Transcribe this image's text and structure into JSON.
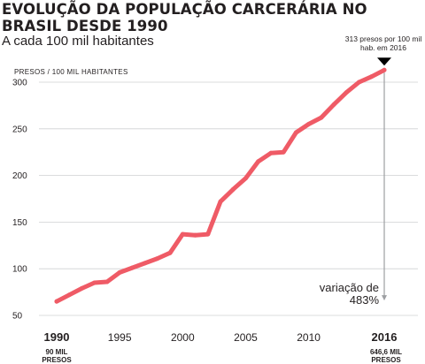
{
  "chart_data": {
    "type": "line",
    "title": "EVOLUÇÃO DA POPULAÇÃO CARCERÁRIA NO BRASIL DESDE 1990",
    "subtitle": "A cada 100 mil habitantes",
    "ylabel": "PRESOS / 100 MIL HABITANTES",
    "xlabel": "",
    "ylim": [
      50,
      315
    ],
    "xlim": [
      1990,
      2016
    ],
    "y_ticks": [
      50,
      100,
      150,
      200,
      250,
      300
    ],
    "x_ticks": [
      1990,
      1995,
      2000,
      2005,
      2010,
      2016
    ],
    "grid": true,
    "color": "#ef5b66",
    "x": [
      1990,
      1991,
      1992,
      1993,
      1994,
      1995,
      1996,
      1997,
      1998,
      1999,
      2000,
      2001,
      2002,
      2003,
      2004,
      2005,
      2006,
      2007,
      2008,
      2009,
      2010,
      2011,
      2012,
      2013,
      2014,
      2015,
      2016
    ],
    "values": [
      65,
      72,
      79,
      85,
      86,
      96,
      101,
      106,
      111,
      117,
      137,
      136,
      137,
      172,
      185,
      197,
      215,
      224,
      225,
      246,
      255,
      262,
      276,
      289,
      300,
      306,
      313
    ],
    "annotations": {
      "end_callout": "313 presos por 100 mil hab. em 2016",
      "variation": "variação de 483%",
      "first_point_label": "90 MIL PRESOS",
      "last_point_label": "646,6 MIL PRESOS"
    }
  }
}
